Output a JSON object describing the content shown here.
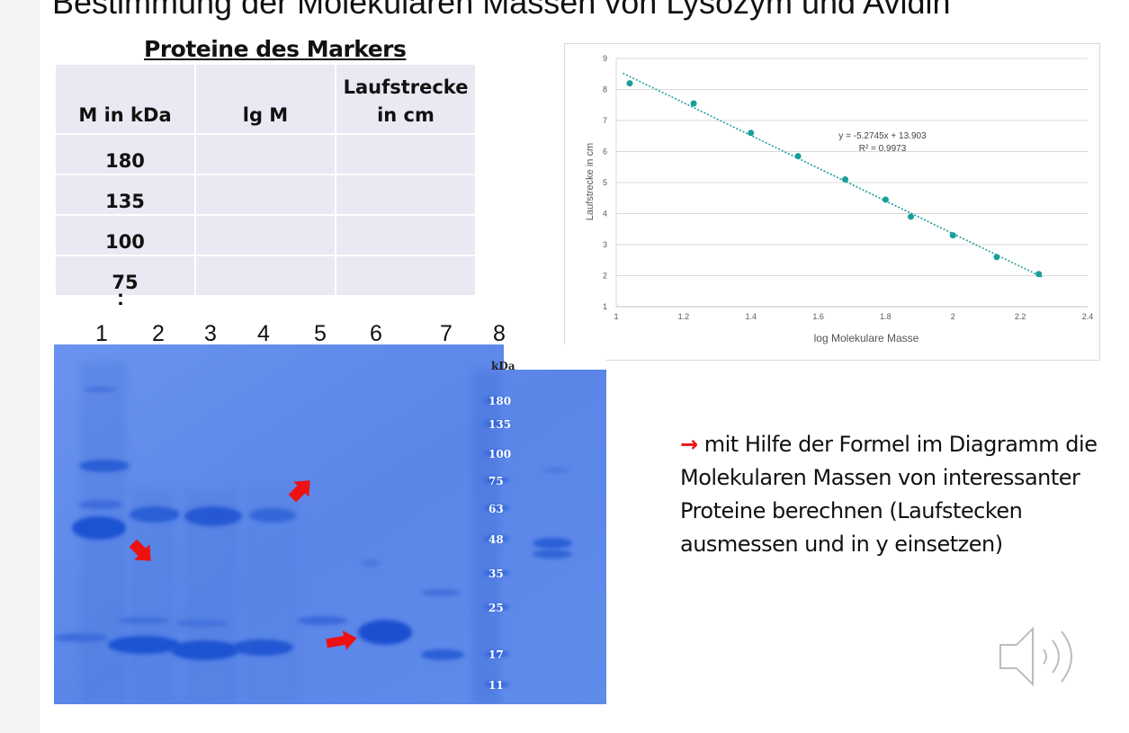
{
  "slide": {
    "title": "Bestimmung der Molekularen Massen von Lysozym und Avidin"
  },
  "marker_table": {
    "caption": "Proteine des Markers",
    "headers": [
      "M in kDa",
      "lg M",
      "Laufstrecke in cm"
    ],
    "header_lines": {
      "col3_line1": "Laufstrecke",
      "col3_line2": "in cm"
    },
    "rows": [
      [
        "180",
        "",
        ""
      ],
      [
        "135",
        "",
        ""
      ],
      [
        "100",
        "",
        ""
      ],
      [
        "75",
        "",
        ""
      ]
    ],
    "continuation": ":"
  },
  "chart_data": {
    "type": "scatter",
    "xlabel": "log Molekulare Masse",
    "ylabel": "Laufstrecke in cm",
    "xlim": [
      1,
      2.4
    ],
    "ylim": [
      1,
      9
    ],
    "xticks": [
      "1",
      "1.2",
      "1.4",
      "1.6",
      "1.8",
      "2",
      "2.2",
      "2.4"
    ],
    "yticks": [
      "1",
      "2",
      "3",
      "4",
      "5",
      "6",
      "7",
      "8",
      "9"
    ],
    "points": [
      {
        "x": 1.04,
        "y": 8.2
      },
      {
        "x": 1.23,
        "y": 7.55
      },
      {
        "x": 1.4,
        "y": 6.6
      },
      {
        "x": 1.54,
        "y": 5.85
      },
      {
        "x": 1.68,
        "y": 5.1
      },
      {
        "x": 1.8,
        "y": 4.45
      },
      {
        "x": 1.875,
        "y": 3.9
      },
      {
        "x": 2.0,
        "y": 3.3
      },
      {
        "x": 2.13,
        "y": 2.6
      },
      {
        "x": 2.255,
        "y": 2.05
      }
    ],
    "trendline": {
      "slope": -5.2745,
      "intercept": 13.903,
      "x_range": [
        1.04,
        2.255
      ]
    },
    "equation": "y = -5.2745x + 13.903",
    "r_squared": "R² = 0.9973",
    "grid": "horizontal",
    "point_color": "#1a9e99",
    "line_color": "#1a9e99"
  },
  "gel": {
    "lane_numbers": [
      "1",
      "2",
      "3",
      "4",
      "5",
      "6",
      "7",
      "8"
    ],
    "ladder_unit": "kDa",
    "ladder_labels": [
      "180",
      "135",
      "100",
      "75",
      "63",
      "48",
      "35",
      "25",
      "17",
      "11"
    ],
    "background_color": "#5b86e8"
  },
  "note": {
    "arrow": "→",
    "text": "mit Hilfe der Formel im Diagramm die Molekularen Massen von interessanter Proteine berechnen (Laufstecken ausmessen und in y einsetzen)"
  },
  "icons": {
    "speaker": "speaker-icon"
  }
}
